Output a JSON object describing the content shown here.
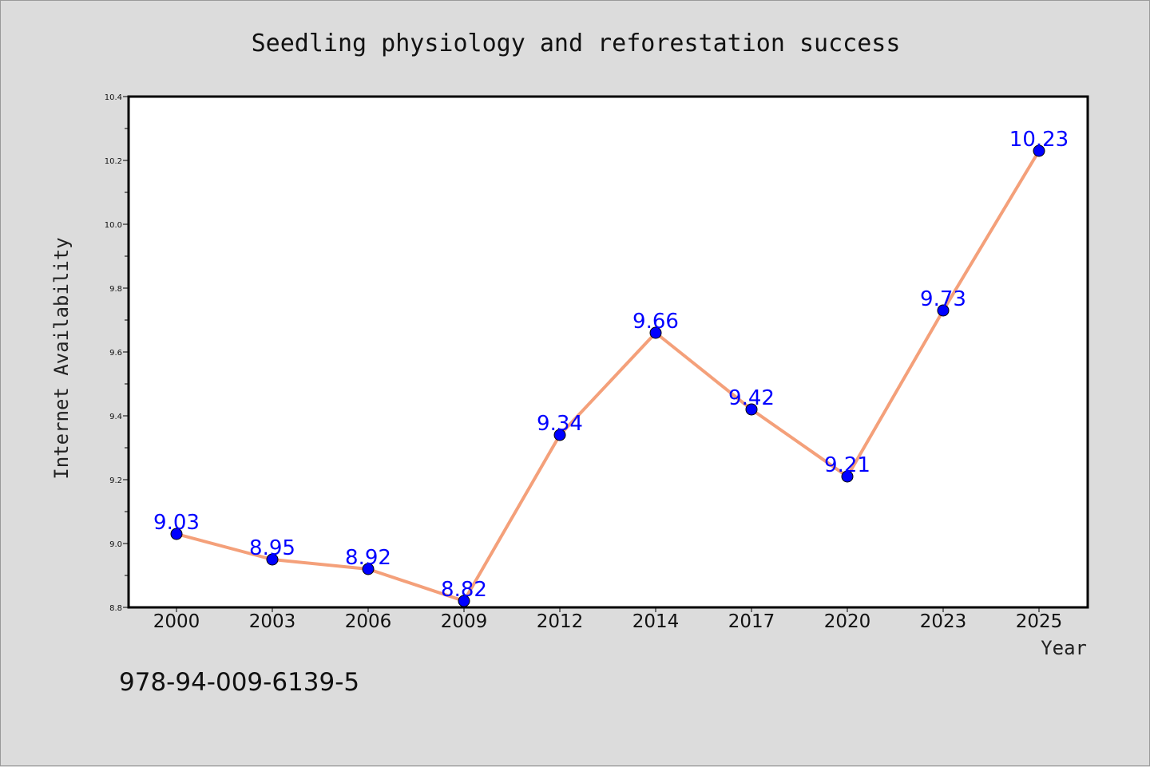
{
  "chart_data": {
    "type": "line",
    "title": "Seedling physiology and reforestation success",
    "xlabel": "Year",
    "ylabel": "Internet Availability",
    "categories": [
      "2000",
      "2003",
      "2006",
      "2009",
      "2012",
      "2014",
      "2017",
      "2020",
      "2023",
      "2025"
    ],
    "series": [
      {
        "values": [
          9.03,
          8.95,
          8.92,
          8.82,
          9.34,
          9.66,
          9.42,
          9.21,
          9.73,
          10.23
        ],
        "line_color": "#f4a07a",
        "marker_color": "#0000ff"
      }
    ],
    "ylim": [
      8.8,
      10.4
    ],
    "yticks": [
      "8.8",
      "9.0",
      "9.2",
      "9.4",
      "9.6",
      "9.8",
      "10.0",
      "10.2",
      "10.4"
    ],
    "data_labels": [
      "9.03",
      "8.95",
      "8.92",
      "8.82",
      "9.34",
      "9.66",
      "9.42",
      "9.21",
      "9.73",
      "10.23"
    ],
    "grid": false,
    "legend": "none"
  },
  "footer": {
    "isbn": "978-94-009-6139-5"
  },
  "colors": {
    "background": "#dcdcdc",
    "plot_background": "#ffffff",
    "axis": "#000000"
  }
}
